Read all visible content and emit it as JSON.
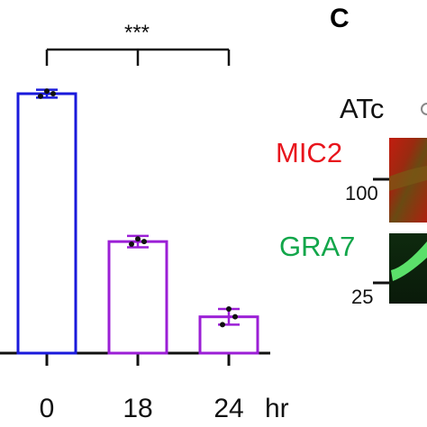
{
  "chart_data": {
    "type": "bar",
    "categories": [
      "0",
      "18",
      "24"
    ],
    "x_unit": "hr",
    "values": [
      100,
      43,
      14
    ],
    "errors": [
      1.5,
      2.2,
      3.0
    ],
    "points": [
      [
        99,
        101,
        100
      ],
      [
        42,
        44,
        43
      ],
      [
        11,
        17,
        14
      ]
    ],
    "bar_colors": [
      "#1a1adb",
      "#9b1fd6",
      "#9b1fd6"
    ],
    "ylim": [
      0,
      100
    ],
    "significance": "***"
  },
  "panel": {
    "letter": "C",
    "atc_label": "ATc",
    "bands": [
      {
        "name": "MIC2",
        "color": "#e8141c"
      },
      {
        "name": "GRA7",
        "color": "#12a64a"
      }
    ],
    "mw_markers": [
      "100",
      "25"
    ]
  }
}
